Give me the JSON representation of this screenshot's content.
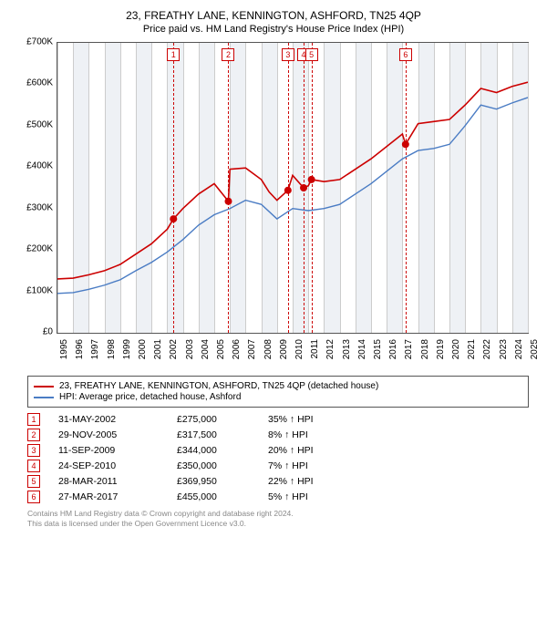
{
  "title": "23, FREATHY LANE, KENNINGTON, ASHFORD, TN25 4QP",
  "subtitle": "Price paid vs. HM Land Registry's House Price Index (HPI)",
  "chart": {
    "type": "line",
    "ylim": [
      0,
      700000
    ],
    "ytick_step": 100000,
    "y_labels": [
      "£0",
      "£100K",
      "£200K",
      "£300K",
      "£400K",
      "£500K",
      "£600K",
      "£700K"
    ],
    "xlim": [
      1995,
      2025
    ],
    "x_labels": [
      "1995",
      "1996",
      "1997",
      "1998",
      "1999",
      "2000",
      "2001",
      "2002",
      "2003",
      "2004",
      "2005",
      "2006",
      "2007",
      "2008",
      "2009",
      "2010",
      "2011",
      "2012",
      "2013",
      "2014",
      "2015",
      "2016",
      "2017",
      "2018",
      "2019",
      "2020",
      "2021",
      "2022",
      "2023",
      "2024",
      "2025"
    ],
    "background_color": "#ffffff",
    "band_color": "#eef1f5",
    "grid_color": "#cccccc",
    "series": [
      {
        "name": "property",
        "color": "#cc0000",
        "width": 1.6,
        "points": [
          [
            1995,
            130000
          ],
          [
            1996,
            132000
          ],
          [
            1997,
            140000
          ],
          [
            1998,
            150000
          ],
          [
            1999,
            165000
          ],
          [
            2000,
            190000
          ],
          [
            2001,
            215000
          ],
          [
            2002,
            250000
          ],
          [
            2002.4,
            275000
          ],
          [
            2003,
            300000
          ],
          [
            2004,
            335000
          ],
          [
            2005,
            360000
          ],
          [
            2005.9,
            317500
          ],
          [
            2006,
            395000
          ],
          [
            2007,
            398000
          ],
          [
            2008,
            370000
          ],
          [
            2008.5,
            340000
          ],
          [
            2009,
            320000
          ],
          [
            2009.7,
            344000
          ],
          [
            2010,
            380000
          ],
          [
            2010.7,
            350000
          ],
          [
            2011,
            355000
          ],
          [
            2011.2,
            369950
          ],
          [
            2012,
            365000
          ],
          [
            2013,
            370000
          ],
          [
            2014,
            395000
          ],
          [
            2015,
            420000
          ],
          [
            2016,
            450000
          ],
          [
            2017,
            480000
          ],
          [
            2017.2,
            455000
          ],
          [
            2018,
            505000
          ],
          [
            2019,
            510000
          ],
          [
            2020,
            515000
          ],
          [
            2021,
            550000
          ],
          [
            2022,
            590000
          ],
          [
            2023,
            580000
          ],
          [
            2024,
            595000
          ],
          [
            2025,
            605000
          ]
        ]
      },
      {
        "name": "hpi",
        "color": "#4a7cc4",
        "width": 1.4,
        "points": [
          [
            1995,
            95000
          ],
          [
            1996,
            97000
          ],
          [
            1997,
            105000
          ],
          [
            1998,
            115000
          ],
          [
            1999,
            128000
          ],
          [
            2000,
            150000
          ],
          [
            2001,
            170000
          ],
          [
            2002,
            195000
          ],
          [
            2003,
            225000
          ],
          [
            2004,
            260000
          ],
          [
            2005,
            285000
          ],
          [
            2006,
            300000
          ],
          [
            2007,
            320000
          ],
          [
            2008,
            310000
          ],
          [
            2009,
            275000
          ],
          [
            2010,
            300000
          ],
          [
            2011,
            295000
          ],
          [
            2012,
            300000
          ],
          [
            2013,
            310000
          ],
          [
            2014,
            335000
          ],
          [
            2015,
            360000
          ],
          [
            2016,
            390000
          ],
          [
            2017,
            420000
          ],
          [
            2018,
            440000
          ],
          [
            2019,
            445000
          ],
          [
            2020,
            455000
          ],
          [
            2021,
            500000
          ],
          [
            2022,
            550000
          ],
          [
            2023,
            540000
          ],
          [
            2024,
            555000
          ],
          [
            2025,
            568000
          ]
        ]
      }
    ],
    "sale_markers": [
      {
        "n": "1",
        "year": 2002.4,
        "value": 275000
      },
      {
        "n": "2",
        "year": 2005.9,
        "value": 317500
      },
      {
        "n": "3",
        "year": 2009.7,
        "value": 344000
      },
      {
        "n": "4",
        "year": 2010.7,
        "value": 350000
      },
      {
        "n": "5",
        "year": 2011.2,
        "value": 369950
      },
      {
        "n": "6",
        "year": 2017.2,
        "value": 455000
      }
    ]
  },
  "legend": [
    {
      "color": "#cc0000",
      "label": "23, FREATHY LANE, KENNINGTON, ASHFORD, TN25 4QP (detached house)"
    },
    {
      "color": "#4a7cc4",
      "label": "HPI: Average price, detached house, Ashford"
    }
  ],
  "table": [
    {
      "n": "1",
      "date": "31-MAY-2002",
      "price": "£275,000",
      "pct": "35% ↑ HPI"
    },
    {
      "n": "2",
      "date": "29-NOV-2005",
      "price": "£317,500",
      "pct": "8% ↑ HPI"
    },
    {
      "n": "3",
      "date": "11-SEP-2009",
      "price": "£344,000",
      "pct": "20% ↑ HPI"
    },
    {
      "n": "4",
      "date": "24-SEP-2010",
      "price": "£350,000",
      "pct": "7% ↑ HPI"
    },
    {
      "n": "5",
      "date": "28-MAR-2011",
      "price": "£369,950",
      "pct": "22% ↑ HPI"
    },
    {
      "n": "6",
      "date": "27-MAR-2017",
      "price": "£455,000",
      "pct": "5% ↑ HPI"
    }
  ],
  "footer1": "Contains HM Land Registry data © Crown copyright and database right 2024.",
  "footer2": "This data is licensed under the Open Government Licence v3.0."
}
